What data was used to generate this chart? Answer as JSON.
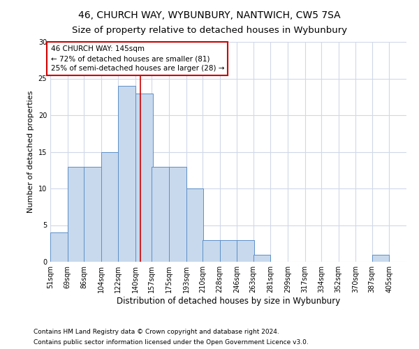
{
  "title1": "46, CHURCH WAY, WYBUNBURY, NANTWICH, CW5 7SA",
  "title2": "Size of property relative to detached houses in Wybunbury",
  "xlabel": "Distribution of detached houses by size in Wybunbury",
  "ylabel": "Number of detached properties",
  "bar_left_edges": [
    51,
    69,
    86,
    104,
    122,
    140,
    157,
    175,
    193,
    210,
    228,
    246,
    263,
    281,
    299,
    317,
    334,
    352,
    370,
    387
  ],
  "bar_heights": [
    4,
    13,
    13,
    15,
    24,
    23,
    13,
    13,
    10,
    3,
    3,
    3,
    1,
    0,
    0,
    0,
    0,
    0,
    0,
    1
  ],
  "bin_width": 18,
  "bar_color": "#c8d9ed",
  "bar_edge_color": "#5b8fc9",
  "property_line_x": 145,
  "annotation_text": "46 CHURCH WAY: 145sqm\n← 72% of detached houses are smaller (81)\n25% of semi-detached houses are larger (28) →",
  "annotation_box_color": "#ffffff",
  "annotation_box_edge_color": "#cc0000",
  "vline_color": "#cc0000",
  "ylim": [
    0,
    30
  ],
  "yticks": [
    0,
    5,
    10,
    15,
    20,
    25,
    30
  ],
  "tick_labels": [
    "51sqm",
    "69sqm",
    "86sqm",
    "104sqm",
    "122sqm",
    "140sqm",
    "157sqm",
    "175sqm",
    "193sqm",
    "210sqm",
    "228sqm",
    "246sqm",
    "263sqm",
    "281sqm",
    "299sqm",
    "317sqm",
    "334sqm",
    "352sqm",
    "370sqm",
    "387sqm",
    "405sqm"
  ],
  "footnote1": "Contains HM Land Registry data © Crown copyright and database right 2024.",
  "footnote2": "Contains public sector information licensed under the Open Government Licence v3.0.",
  "bg_color": "#ffffff",
  "grid_color": "#d0d8e8",
  "title1_fontsize": 10,
  "title2_fontsize": 9.5,
  "xlabel_fontsize": 8.5,
  "ylabel_fontsize": 8,
  "tick_fontsize": 7,
  "annot_fontsize": 7.5
}
